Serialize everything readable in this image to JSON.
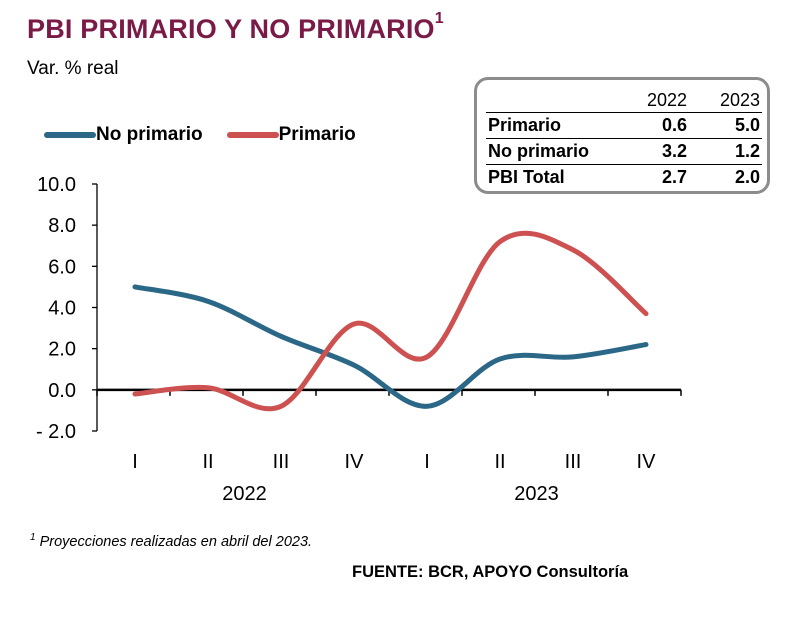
{
  "header": {
    "title": "PBI PRIMARIO Y NO PRIMARIO",
    "title_sup": "1",
    "subtitle": "Var. % real"
  },
  "legend": [
    {
      "label": "No primario",
      "color": "#2b6787"
    },
    {
      "label": "Primario",
      "color": "#cd5150"
    }
  ],
  "summary_table": {
    "columns": [
      "2022",
      "2023"
    ],
    "rows": [
      {
        "label": "Primario",
        "values": [
          "0.6",
          "5.0"
        ]
      },
      {
        "label": "No primario",
        "values": [
          "3.2",
          "1.2"
        ]
      },
      {
        "label": "PBI Total",
        "values": [
          "2.7",
          "2.0"
        ]
      }
    ]
  },
  "chart_data": {
    "type": "line",
    "categories": [
      "I",
      "II",
      "III",
      "IV",
      "I",
      "II",
      "III",
      "IV"
    ],
    "year_groups": [
      "2022",
      "2023"
    ],
    "ylim": [
      -2.0,
      10.0
    ],
    "yticks": [
      -2.0,
      0.0,
      2.0,
      4.0,
      6.0,
      8.0,
      10.0
    ],
    "ytick_labels": [
      "- 2.0",
      "0.0",
      "2.0",
      "4.0",
      "6.0",
      "8.0",
      "10.0"
    ],
    "series": [
      {
        "name": "No primario",
        "color": "#2b6787",
        "values": [
          5.0,
          4.3,
          2.6,
          1.2,
          -0.8,
          1.5,
          1.6,
          2.2
        ]
      },
      {
        "name": "Primario",
        "color": "#cd5150",
        "values": [
          -0.2,
          0.1,
          -0.8,
          3.2,
          1.6,
          7.2,
          6.8,
          3.7
        ]
      }
    ]
  },
  "footnote": {
    "sup": "1",
    "text": "Proyecciones realizadas en abril del 2023."
  },
  "source": "FUENTE: BCR, APOYO Consultoría"
}
